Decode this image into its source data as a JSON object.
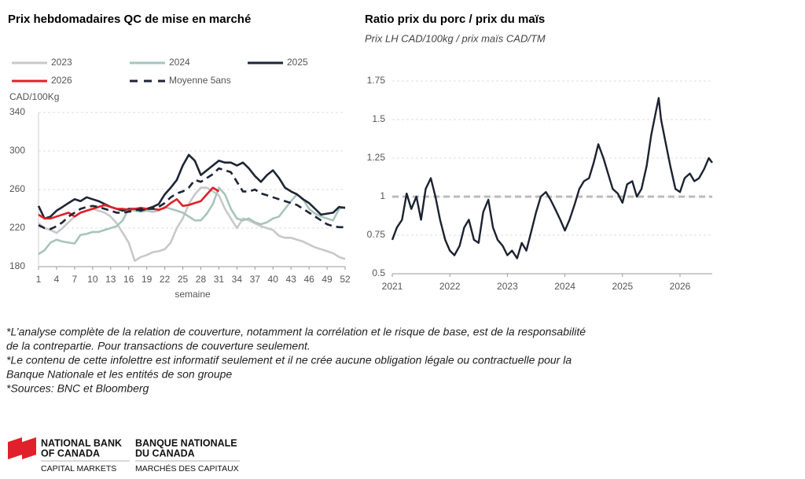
{
  "chart_data": [
    {
      "type": "line",
      "title": "Prix hebdomadaires QC de mise en marché",
      "y_label": "CAD/100Kg",
      "x_label": "semaine",
      "x": [
        1,
        2,
        3,
        4,
        5,
        6,
        7,
        8,
        9,
        10,
        11,
        12,
        13,
        14,
        15,
        16,
        17,
        18,
        19,
        20,
        21,
        22,
        23,
        24,
        25,
        26,
        27,
        28,
        29,
        30,
        31,
        32,
        33,
        34,
        35,
        36,
        37,
        38,
        39,
        40,
        41,
        42,
        43,
        44,
        45,
        46,
        47,
        48,
        49,
        50,
        51,
        52
      ],
      "xlim": [
        1,
        52
      ],
      "xticks": [
        1,
        4,
        7,
        10,
        13,
        16,
        19,
        22,
        25,
        28,
        31,
        34,
        37,
        40,
        43,
        46,
        49,
        52
      ],
      "ylim": [
        180,
        340
      ],
      "yticks": [
        180,
        220,
        260,
        300,
        340
      ],
      "grid": true,
      "series": [
        {
          "name": "2023",
          "color": "#c8c8c8",
          "values": [
            225,
            220,
            218,
            215,
            220,
            226,
            232,
            236,
            238,
            240,
            238,
            236,
            232,
            225,
            215,
            205,
            186,
            190,
            192,
            195,
            196,
            198,
            205,
            220,
            230,
            245,
            255,
            262,
            262,
            258,
            254,
            240,
            230,
            220,
            230,
            228,
            225,
            222,
            220,
            218,
            212,
            210,
            210,
            208,
            206,
            203,
            200,
            198,
            196,
            194,
            190,
            188
          ]
        },
        {
          "name": "2024",
          "color": "#a8c4bc",
          "values": [
            193,
            197,
            205,
            208,
            206,
            205,
            204,
            213,
            214,
            216,
            216,
            218,
            220,
            222,
            228,
            240,
            238,
            237,
            238,
            237,
            238,
            242,
            240,
            238,
            236,
            232,
            228,
            228,
            235,
            245,
            262,
            255,
            240,
            230,
            228,
            230,
            226,
            224,
            226,
            230,
            232,
            240,
            248,
            255,
            250,
            240,
            235,
            232,
            230,
            228,
            240,
            242
          ]
        },
        {
          "name": "2025",
          "color": "#1e2535",
          "values": [
            243,
            230,
            232,
            238,
            242,
            246,
            250,
            248,
            252,
            250,
            248,
            245,
            242,
            240,
            238,
            240,
            240,
            238,
            240,
            242,
            245,
            255,
            262,
            270,
            285,
            296,
            290,
            275,
            280,
            285,
            290,
            288,
            288,
            285,
            288,
            282,
            274,
            268,
            275,
            280,
            272,
            262,
            258,
            255,
            250,
            246,
            240,
            234,
            235,
            236,
            242,
            241
          ]
        },
        {
          "name": "2026",
          "color": "#e0202a",
          "values": [
            234,
            230,
            230,
            232,
            234,
            236,
            232,
            236,
            238,
            240,
            242,
            244,
            242,
            240,
            240,
            239,
            240,
            241,
            240,
            240,
            239,
            241,
            246,
            250,
            243,
            244,
            246,
            248,
            255,
            262,
            258,
            null,
            null,
            null,
            null,
            null,
            null,
            null,
            null,
            null,
            null,
            null,
            null,
            null,
            null,
            null,
            null,
            null,
            null,
            null,
            null,
            null
          ]
        },
        {
          "name": "Moyenne 5ans",
          "color": "#1e2535",
          "dash": true,
          "values": [
            223,
            220,
            219,
            222,
            226,
            232,
            236,
            240,
            242,
            243,
            242,
            240,
            238,
            236,
            236,
            237,
            238,
            240,
            240,
            240,
            242,
            246,
            252,
            256,
            258,
            262,
            270,
            268,
            272,
            276,
            282,
            280,
            278,
            268,
            258,
            258,
            260,
            256,
            254,
            252,
            250,
            248,
            246,
            244,
            240,
            236,
            232,
            228,
            224,
            222,
            221,
            221
          ]
        }
      ]
    },
    {
      "type": "line",
      "title": "Ratio prix du porc / prix du maïs",
      "subtitle": "Prix LH CAD/100kg / prix maïs CAD/TM",
      "x": [
        2021,
        2021.08,
        2021.17,
        2021.25,
        2021.33,
        2021.42,
        2021.5,
        2021.58,
        2021.67,
        2021.75,
        2021.83,
        2021.92,
        2022,
        2022.08,
        2022.17,
        2022.25,
        2022.33,
        2022.42,
        2022.5,
        2022.58,
        2022.67,
        2022.75,
        2022.83,
        2022.92,
        2023,
        2023.08,
        2023.17,
        2023.25,
        2023.33,
        2023.42,
        2023.5,
        2023.58,
        2023.67,
        2023.75,
        2023.83,
        2023.92,
        2024,
        2024.08,
        2024.17,
        2024.25,
        2024.33,
        2024.42,
        2024.5,
        2024.58,
        2024.67,
        2024.75,
        2024.83,
        2024.92,
        2025,
        2025.08,
        2025.17,
        2025.25,
        2025.33,
        2025.42,
        2025.5,
        2025.58,
        2025.63,
        2025.67,
        2025.75,
        2025.83,
        2025.92,
        2026,
        2026.08,
        2026.17,
        2026.25,
        2026.33,
        2026.42,
        2026.5,
        2026.56
      ],
      "values": [
        0.72,
        0.8,
        0.85,
        1.02,
        0.92,
        1.0,
        0.85,
        1.05,
        1.12,
        1.0,
        0.85,
        0.72,
        0.65,
        0.62,
        0.68,
        0.8,
        0.85,
        0.72,
        0.7,
        0.9,
        0.98,
        0.8,
        0.72,
        0.68,
        0.62,
        0.65,
        0.6,
        0.7,
        0.65,
        0.78,
        0.9,
        1.0,
        1.03,
        0.98,
        0.92,
        0.85,
        0.78,
        0.85,
        0.95,
        1.05,
        1.1,
        1.12,
        1.22,
        1.34,
        1.25,
        1.15,
        1.05,
        1.02,
        0.96,
        1.08,
        1.1,
        1.0,
        1.05,
        1.2,
        1.4,
        1.55,
        1.64,
        1.5,
        1.35,
        1.2,
        1.05,
        1.03,
        1.12,
        1.15,
        1.1,
        1.12,
        1.18,
        1.25,
        1.22
      ],
      "color": "#1c2230",
      "xlim": [
        2021,
        2026.56
      ],
      "xticks": [
        2021,
        2022,
        2023,
        2024,
        2025,
        2026
      ],
      "ylim": [
        0.5,
        1.75
      ],
      "yticks": [
        0.5,
        0.75,
        1,
        1.25,
        1.5,
        1.75
      ],
      "grid": true,
      "reference_line": {
        "value": 1,
        "color": "#bbbbbb"
      }
    }
  ],
  "footnotes": [
    "*L’analyse complète de la relation de couverture, notamment la corrélation et le risque de base, est de la responsabilité",
    "de la contrepartie. Pour transactions de couverture seulement.",
    "*Le contenu de cette infolettre est informatif seulement et il ne crée aucune obligation légale ou contractuelle pour la",
    "Banque Nationale et les entités de son groupe",
    "*Sources: BNC et Bloomberg"
  ],
  "logo": {
    "en_name": [
      "NATIONAL BANK",
      "OF CANADA"
    ],
    "en_division": "CAPITAL MARKETS",
    "fr_name": [
      "BANQUE NATIONALE",
      "DU CANADA"
    ],
    "fr_division": "MARCHÉS DES CAPITAUX"
  }
}
